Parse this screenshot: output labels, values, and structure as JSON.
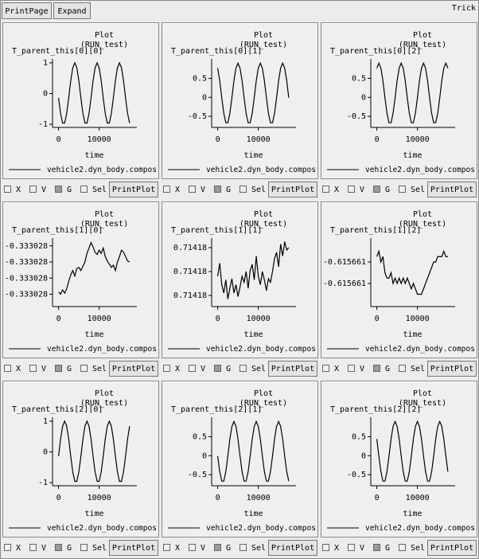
{
  "toolbar": {
    "buttons": [
      "PrintPage",
      "Expand"
    ],
    "label": "Trick"
  },
  "chart_data": [
    {
      "type": "line",
      "title": "Plot",
      "subtitle": "(RUN_test)",
      "y_label": "T_parent_this[0][0]",
      "x_label": "time",
      "x": [
        0,
        500,
        1000,
        1500,
        2000,
        2500,
        3000,
        3500,
        4000,
        4500,
        5000,
        5500,
        6000,
        6500,
        7000,
        7500,
        8000,
        8500,
        9000,
        9500,
        10000,
        10500,
        11000,
        11500,
        12000,
        12500,
        13000,
        13500,
        14000,
        14500,
        15000,
        15500,
        16000,
        16500,
        17000,
        17500
      ],
      "series": [
        {
          "name": "vehicle2.dyn_body.compos",
          "color": "#000000",
          "values": [
            -0.14,
            -0.65,
            -0.96,
            -0.96,
            -0.65,
            -0.14,
            0.42,
            0.84,
            1,
            0.84,
            0.42,
            -0.14,
            -0.65,
            -0.96,
            -0.96,
            -0.65,
            -0.14,
            0.42,
            0.84,
            1,
            0.84,
            0.42,
            -0.14,
            -0.65,
            -0.96,
            -0.96,
            -0.65,
            -0.14,
            0.42,
            0.84,
            1,
            0.84,
            0.42,
            -0.14,
            -0.65,
            -0.96
          ]
        }
      ],
      "xlim": [
        -900,
        18500
      ],
      "ylim": [
        -1.05,
        1.05
      ],
      "xticks": [
        0,
        10000
      ],
      "yticks": [
        -1,
        0,
        1
      ]
    },
    {
      "type": "line",
      "title": "Plot",
      "subtitle": "(RUN_test)",
      "y_label": "T_parent_this[0][1]",
      "x_label": "time",
      "x": [
        0,
        500,
        1000,
        1500,
        2000,
        2500,
        3000,
        3500,
        4000,
        4500,
        5000,
        5500,
        6000,
        6500,
        7000,
        7500,
        8000,
        8500,
        9000,
        9500,
        10000,
        10500,
        11000,
        11500,
        12000,
        12500,
        13000,
        13500,
        14000,
        14500,
        15000,
        15500,
        16000,
        16500,
        17000,
        17500
      ],
      "series": [
        {
          "name": "vehicle2.dyn_body.compos",
          "color": "#000000",
          "values": [
            0.77,
            0.44,
            -0.01,
            -0.42,
            -0.67,
            -0.67,
            -0.42,
            -0.01,
            0.44,
            0.77,
            0.9,
            0.77,
            0.44,
            -0.01,
            -0.42,
            -0.67,
            -0.67,
            -0.42,
            -0.01,
            0.44,
            0.77,
            0.9,
            0.77,
            0.44,
            -0.01,
            -0.42,
            -0.67,
            -0.67,
            -0.42,
            -0.01,
            0.44,
            0.77,
            0.9,
            0.77,
            0.44,
            -0.01
          ]
        }
      ],
      "xlim": [
        -900,
        18500
      ],
      "ylim": [
        -0.75,
        0.95
      ],
      "xticks": [
        0,
        10000
      ],
      "yticks": [
        -0.5,
        0,
        0.5
      ]
    },
    {
      "type": "line",
      "title": "Plot",
      "subtitle": "(RUN_test)",
      "y_label": "T_parent_this[0][2]",
      "x_label": "time",
      "x": [
        0,
        500,
        1000,
        1500,
        2000,
        2500,
        3000,
        3500,
        4000,
        4500,
        5000,
        5500,
        6000,
        6500,
        7000,
        7500,
        8000,
        8500,
        9000,
        9500,
        10000,
        10500,
        11000,
        11500,
        12000,
        12500,
        13000,
        13500,
        14000,
        14500,
        15000,
        15500,
        16000,
        16500,
        17000,
        17500
      ],
      "series": [
        {
          "name": "vehicle2.dyn_body.compos",
          "color": "#000000",
          "values": [
            0.77,
            0.9,
            0.77,
            0.44,
            -0.01,
            -0.42,
            -0.67,
            -0.67,
            -0.42,
            -0.01,
            0.44,
            0.77,
            0.9,
            0.77,
            0.44,
            -0.01,
            -0.42,
            -0.67,
            -0.67,
            -0.42,
            -0.01,
            0.44,
            0.77,
            0.9,
            0.77,
            0.44,
            -0.01,
            -0.42,
            -0.67,
            -0.67,
            -0.42,
            -0.01,
            0.44,
            0.77,
            0.9,
            0.77
          ]
        }
      ],
      "xlim": [
        -900,
        18500
      ],
      "ylim": [
        -0.75,
        0.95
      ],
      "xticks": [
        0,
        10000
      ],
      "yticks": [
        -0.5,
        0,
        0.5
      ]
    },
    {
      "type": "line",
      "title": "Plot",
      "subtitle": "(RUN_test)",
      "y_label": "T_parent_this[1][0]",
      "x_label": "time",
      "x": [
        0,
        500,
        1000,
        1500,
        2000,
        2500,
        3000,
        3500,
        4000,
        4500,
        5000,
        5500,
        6000,
        6500,
        7000,
        7500,
        8000,
        8500,
        9000,
        9500,
        10000,
        10500,
        11000,
        11500,
        12000,
        12500,
        13000,
        13500,
        14000,
        14500,
        15000,
        15500,
        16000,
        16500,
        17000,
        17500
      ],
      "series": [
        {
          "name": "vehicle2.dyn_body.compos",
          "color": "#000000",
          "values": [
            -0.33302828,
            -0.3330283,
            -0.33302826,
            -0.33302829,
            -0.33302825,
            -0.33302818,
            -0.33302812,
            -0.33302808,
            -0.33302813,
            -0.33302806,
            -0.33302805,
            -0.33302808,
            -0.33302804,
            -0.333028,
            -0.33302792,
            -0.33302787,
            -0.33302782,
            -0.33302786,
            -0.33302791,
            -0.33302793,
            -0.33302789,
            -0.33302792,
            -0.33302787,
            -0.33302795,
            -0.33302799,
            -0.33302802,
            -0.33302805,
            -0.33302803,
            -0.33302808,
            -0.333028,
            -0.33302795,
            -0.33302789,
            -0.33302791,
            -0.33302795,
            -0.33302799,
            -0.333028
          ]
        }
      ],
      "xlim": [
        -900,
        18500
      ],
      "ylim": [
        -0.3330284,
        -0.3330278
      ],
      "xticks": [
        0,
        10000
      ],
      "yticks": [
        {
          "value": -0.3330283,
          "label": "-0.333028"
        },
        {
          "value": -0.33302815,
          "label": "-0.333028"
        },
        {
          "value": -0.333028,
          "label": "-0.333028"
        },
        {
          "value": -0.33302785,
          "label": "-0.333028"
        }
      ]
    },
    {
      "type": "line",
      "title": "Plot",
      "subtitle": "(RUN_test)",
      "y_label": "T_parent_this[1][1]",
      "x_label": "time",
      "x": [
        0,
        500,
        1000,
        1500,
        2000,
        2500,
        3000,
        3500,
        4000,
        4500,
        5000,
        5500,
        6000,
        6500,
        7000,
        7500,
        8000,
        8500,
        9000,
        9500,
        10000,
        10500,
        11000,
        11500,
        12000,
        12500,
        13000,
        13500,
        14000,
        14500,
        15000,
        15500,
        16000,
        16500,
        17000,
        17500
      ],
      "series": [
        {
          "name": "vehicle2.dyn_body.compos",
          "color": "#000000",
          "values": [
            0.7141796,
            0.7141807,
            0.7141789,
            0.7141782,
            0.7141793,
            0.7141777,
            0.7141786,
            0.7141794,
            0.7141782,
            0.7141789,
            0.7141779,
            0.7141787,
            0.7141796,
            0.7141791,
            0.71418,
            0.7141786,
            0.7141801,
            0.7141806,
            0.7141793,
            0.7141813,
            0.7141796,
            0.7141789,
            0.71418,
            0.7141793,
            0.7141784,
            0.7141794,
            0.7141791,
            0.71418,
            0.7141811,
            0.7141816,
            0.7141804,
            0.7141823,
            0.7141813,
            0.7141825,
            0.7141818,
            0.714182
          ]
        }
      ],
      "xlim": [
        -900,
        18500
      ],
      "ylim": [
        0.7141772,
        0.7141826
      ],
      "xticks": [
        0,
        10000
      ],
      "yticks": [
        {
          "value": 0.714178,
          "label": "0.71418"
        },
        {
          "value": 0.71418,
          "label": "0.71418"
        },
        {
          "value": 0.714182,
          "label": "0.71418"
        }
      ]
    },
    {
      "type": "line",
      "title": "Plot",
      "subtitle": "(RUN_test)",
      "y_label": "T_parent_this[1][2]",
      "x_label": "time",
      "x": [
        0,
        500,
        1000,
        1500,
        2000,
        2500,
        3000,
        3500,
        4000,
        4500,
        5000,
        5500,
        6000,
        6500,
        7000,
        7500,
        8000,
        8500,
        9000,
        9500,
        10000,
        10500,
        11000,
        11500,
        12000,
        12500,
        13000,
        13500,
        14000,
        14500,
        15000,
        15500,
        16000,
        16500,
        17000,
        17500
      ],
      "series": [
        {
          "name": "vehicle2.dyn_body.compos",
          "color": "#000000",
          "values": [
            -0.6156607,
            -0.6156606,
            -0.6156608,
            -0.6156607,
            -0.615661,
            -0.6156611,
            -0.6156611,
            -0.615661,
            -0.6156612,
            -0.6156611,
            -0.6156612,
            -0.6156611,
            -0.6156612,
            -0.6156611,
            -0.6156612,
            -0.6156611,
            -0.6156612,
            -0.6156613,
            -0.6156612,
            -0.6156613,
            -0.6156614,
            -0.6156614,
            -0.6156614,
            -0.6156613,
            -0.6156612,
            -0.6156611,
            -0.615661,
            -0.6156609,
            -0.6156608,
            -0.6156608,
            -0.6156607,
            -0.6156607,
            -0.6156607,
            -0.6156606,
            -0.6156607,
            -0.6156607
          ]
        }
      ],
      "xlim": [
        -900,
        18500
      ],
      "ylim": [
        -0.6156616,
        -0.6156604
      ],
      "xticks": [
        0,
        10000
      ],
      "yticks": [
        {
          "value": -0.6156612,
          "label": "-0.615661"
        },
        {
          "value": -0.6156608,
          "label": "-0.615661"
        }
      ]
    },
    {
      "type": "line",
      "title": "Plot",
      "subtitle": "(RUN_test)",
      "y_label": "T_parent_this[2][0]",
      "x_label": "time",
      "x": [
        0,
        500,
        1000,
        1500,
        2000,
        2500,
        3000,
        3500,
        4000,
        4500,
        5000,
        5500,
        6000,
        6500,
        7000,
        7500,
        8000,
        8500,
        9000,
        9500,
        10000,
        10500,
        11000,
        11500,
        12000,
        12500,
        13000,
        13500,
        14000,
        14500,
        15000,
        15500,
        16000,
        16500,
        17000,
        17500
      ],
      "series": [
        {
          "name": "vehicle2.dyn_body.compos",
          "color": "#000000",
          "values": [
            -0.14,
            0.42,
            0.84,
            1,
            0.84,
            0.42,
            -0.14,
            -0.65,
            -0.96,
            -0.96,
            -0.65,
            -0.14,
            0.42,
            0.84,
            1,
            0.84,
            0.42,
            -0.14,
            -0.65,
            -0.96,
            -0.96,
            -0.65,
            -0.14,
            0.42,
            0.84,
            1,
            0.84,
            0.42,
            -0.14,
            -0.65,
            -0.96,
            -0.96,
            -0.65,
            -0.14,
            0.42,
            0.84
          ]
        }
      ],
      "xlim": [
        -900,
        18500
      ],
      "ylim": [
        -1.05,
        1.05
      ],
      "xticks": [
        0,
        10000
      ],
      "yticks": [
        -1,
        0,
        1
      ]
    },
    {
      "type": "line",
      "title": "Plot",
      "subtitle": "(RUN_test)",
      "y_label": "T_parent_this[2][1]",
      "x_label": "time",
      "x": [
        0,
        500,
        1000,
        1500,
        2000,
        2500,
        3000,
        3500,
        4000,
        4500,
        5000,
        5500,
        6000,
        6500,
        7000,
        7500,
        8000,
        8500,
        9000,
        9500,
        10000,
        10500,
        11000,
        11500,
        12000,
        12500,
        13000,
        13500,
        14000,
        14500,
        15000,
        15500,
        16000,
        16500,
        17000,
        17500
      ],
      "series": [
        {
          "name": "vehicle2.dyn_body.compos",
          "color": "#000000",
          "values": [
            -0.01,
            -0.42,
            -0.67,
            -0.67,
            -0.42,
            -0.01,
            0.44,
            0.77,
            0.9,
            0.77,
            0.44,
            -0.01,
            -0.42,
            -0.67,
            -0.67,
            -0.42,
            -0.01,
            0.44,
            0.77,
            0.9,
            0.77,
            0.44,
            -0.01,
            -0.42,
            -0.67,
            -0.67,
            -0.42,
            -0.01,
            0.44,
            0.77,
            0.9,
            0.77,
            0.44,
            -0.01,
            -0.42,
            -0.67
          ]
        }
      ],
      "xlim": [
        -900,
        18500
      ],
      "ylim": [
        -0.75,
        0.95
      ],
      "xticks": [
        0,
        10000
      ],
      "yticks": [
        -0.5,
        0,
        0.5
      ]
    },
    {
      "type": "line",
      "title": "Plot",
      "subtitle": "(RUN_test)",
      "y_label": "T_parent_this[2][2]",
      "x_label": "time",
      "x": [
        0,
        500,
        1000,
        1500,
        2000,
        2500,
        3000,
        3500,
        4000,
        4500,
        5000,
        5500,
        6000,
        6500,
        7000,
        7500,
        8000,
        8500,
        9000,
        9500,
        10000,
        10500,
        11000,
        11500,
        12000,
        12500,
        13000,
        13500,
        14000,
        14500,
        15000,
        15500,
        16000,
        16500,
        17000,
        17500
      ],
      "series": [
        {
          "name": "vehicle2.dyn_body.compos",
          "color": "#000000",
          "values": [
            0.44,
            -0.01,
            -0.42,
            -0.67,
            -0.67,
            -0.42,
            -0.01,
            0.44,
            0.77,
            0.9,
            0.77,
            0.44,
            -0.01,
            -0.42,
            -0.67,
            -0.67,
            -0.42,
            -0.01,
            0.44,
            0.77,
            0.9,
            0.77,
            0.44,
            -0.01,
            -0.42,
            -0.67,
            -0.67,
            -0.42,
            -0.01,
            0.44,
            0.77,
            0.9,
            0.77,
            0.44,
            -0.01,
            -0.42
          ]
        }
      ],
      "xlim": [
        -900,
        18500
      ],
      "ylim": [
        -0.75,
        0.95
      ],
      "xticks": [
        0,
        10000
      ],
      "yticks": [
        -0.5,
        0,
        0.5
      ]
    }
  ],
  "controls": [
    {
      "checkboxes": [
        "X",
        "V",
        "G",
        "Sel"
      ],
      "button": "PrintPlot"
    },
    {
      "checkboxes": [
        "X",
        "V",
        "G",
        "Sel"
      ],
      "button": "PrintPlot"
    },
    {
      "checkboxes": [
        "X",
        "V",
        "G",
        "Sel"
      ],
      "button": "PrintPlot"
    },
    {
      "checkboxes": [
        "X",
        "V",
        "G",
        "Sel"
      ],
      "button": "PrintPlot"
    },
    {
      "checkboxes": [
        "X",
        "V",
        "G",
        "Sel"
      ],
      "button": "PrintPlot"
    },
    {
      "checkboxes": [
        "X",
        "V",
        "G",
        "Sel"
      ],
      "button": "PrintPlot"
    },
    {
      "checkboxes": [
        "X",
        "V",
        "G",
        "Sel"
      ],
      "button": "PrintPlot"
    },
    {
      "checkboxes": [
        "X",
        "V",
        "G",
        "Sel"
      ],
      "button": "PrintPlot"
    },
    {
      "checkboxes": [
        "X",
        "V",
        "G",
        "Sel"
      ],
      "button": "PrintPlot"
    }
  ]
}
